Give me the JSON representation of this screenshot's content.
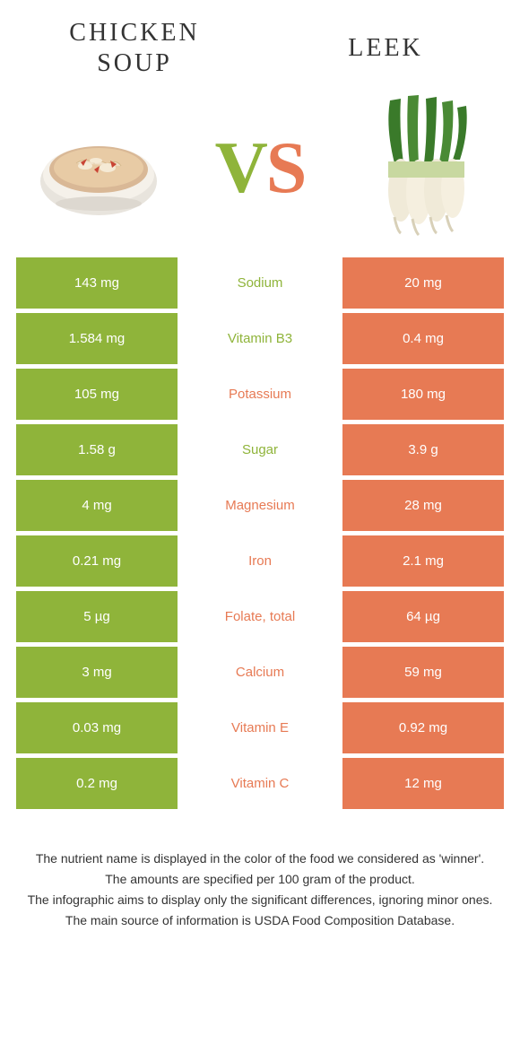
{
  "colors": {
    "left": "#8fb43a",
    "right": "#e77a54",
    "leftText": "#8fb43a",
    "rightText": "#e77a54",
    "vsV": "#8fb43a",
    "vsS": "#e77a54"
  },
  "leftFood": {
    "title": "Chicken\nsoup"
  },
  "rightFood": {
    "title": "Leek"
  },
  "rows": [
    {
      "nutrient": "Sodium",
      "left": "143 mg",
      "right": "20 mg",
      "winner": "left"
    },
    {
      "nutrient": "Vitamin B3",
      "left": "1.584 mg",
      "right": "0.4 mg",
      "winner": "left"
    },
    {
      "nutrient": "Potassium",
      "left": "105 mg",
      "right": "180 mg",
      "winner": "right"
    },
    {
      "nutrient": "Sugar",
      "left": "1.58 g",
      "right": "3.9 g",
      "winner": "left"
    },
    {
      "nutrient": "Magnesium",
      "left": "4 mg",
      "right": "28 mg",
      "winner": "right"
    },
    {
      "nutrient": "Iron",
      "left": "0.21 mg",
      "right": "2.1 mg",
      "winner": "right"
    },
    {
      "nutrient": "Folate, total",
      "left": "5 µg",
      "right": "64 µg",
      "winner": "right"
    },
    {
      "nutrient": "Calcium",
      "left": "3 mg",
      "right": "59 mg",
      "winner": "right"
    },
    {
      "nutrient": "Vitamin E",
      "left": "0.03 mg",
      "right": "0.92 mg",
      "winner": "right"
    },
    {
      "nutrient": "Vitamin C",
      "left": "0.2 mg",
      "right": "12 mg",
      "winner": "right"
    }
  ],
  "footnotes": [
    "The nutrient name is displayed in the color of the food we considered as 'winner'.",
    "The amounts are specified per 100 gram of the product.",
    "The infographic aims to display only the significant differences, ignoring minor ones.",
    "The main source of information is USDA Food Composition Database."
  ]
}
